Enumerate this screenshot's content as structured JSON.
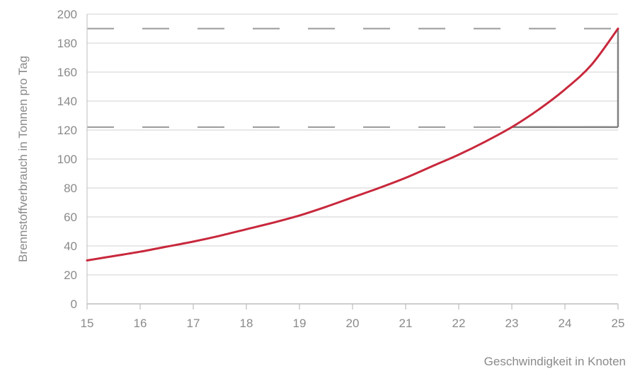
{
  "chart_data": {
    "type": "line",
    "title": "",
    "xlabel": "Geschwindigkeit in Knoten",
    "ylabel": "Brennstoffverbrauch in Tonnen pro Tag",
    "xlim": [
      15,
      25
    ],
    "ylim": [
      0,
      200
    ],
    "x_ticks": [
      "15",
      "16",
      "17",
      "18",
      "19",
      "20",
      "21",
      "22",
      "23",
      "24",
      "25"
    ],
    "y_ticks": [
      "0",
      "20",
      "40",
      "60",
      "80",
      "100",
      "120",
      "140",
      "160",
      "180",
      "200"
    ],
    "grid": true,
    "series": [
      {
        "color": "#c8283c",
        "x": [
          15,
          15.5,
          16,
          16.5,
          17,
          17.5,
          18,
          18.5,
          19,
          19.5,
          20,
          20.5,
          21,
          21.5,
          22,
          22.5,
          23,
          23.5,
          24,
          24.5,
          25
        ],
        "y": [
          30,
          33,
          36,
          39.5,
          43,
          47,
          51.5,
          56,
          61,
          67,
          73.5,
          80,
          87,
          95,
          103,
          112,
          122,
          134,
          148,
          165,
          190
        ]
      }
    ],
    "annotations": {
      "dashed_reference_lines_y": [
        190,
        122
      ],
      "dashed_color": "#9a9a9a",
      "bracket_color": "#808080",
      "bracket_from": {
        "x": 23,
        "y": 122
      },
      "bracket_to": {
        "x": 25,
        "y": 190
      }
    }
  }
}
